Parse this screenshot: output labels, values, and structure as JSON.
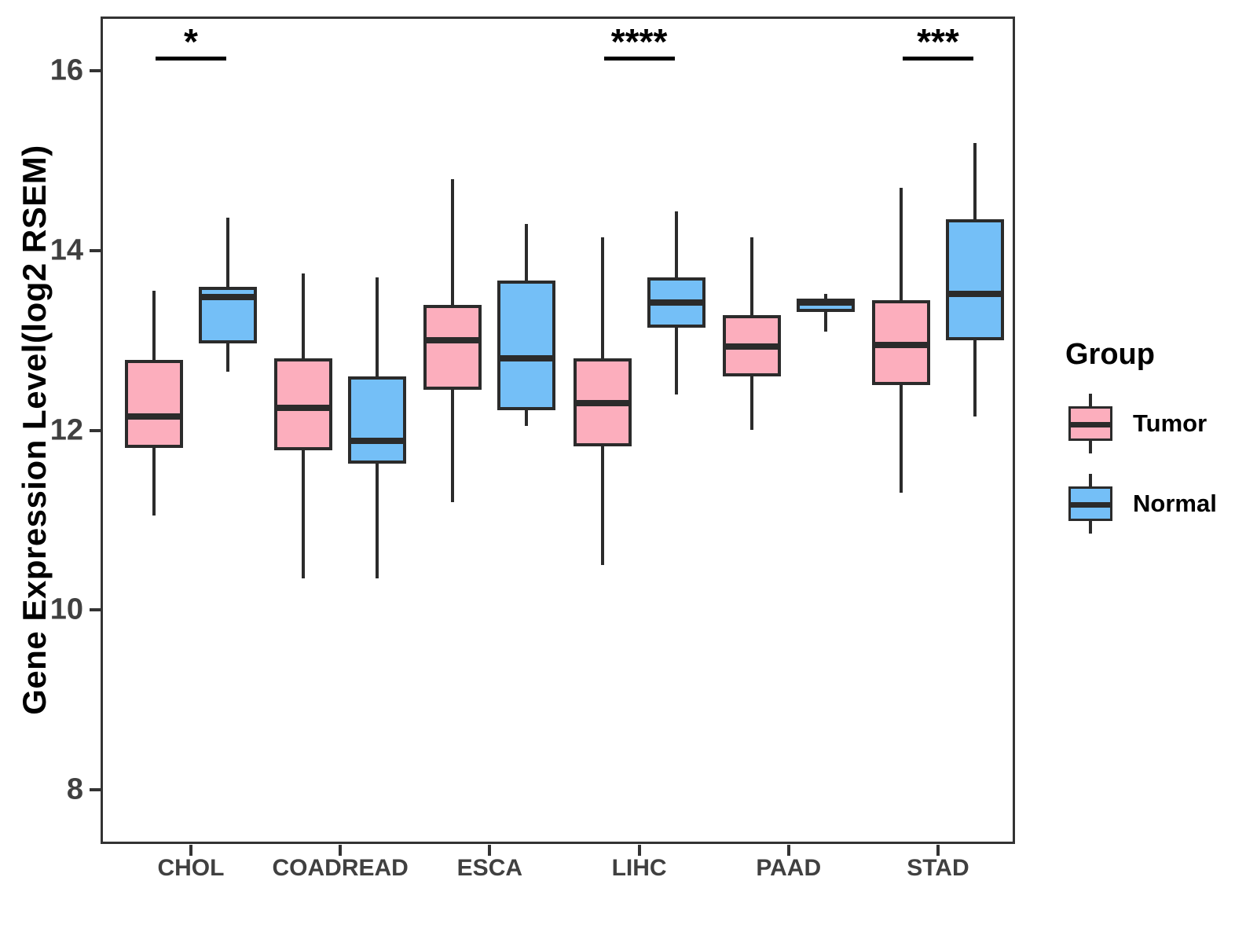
{
  "chart_data": {
    "type": "boxplot",
    "title": "",
    "xlabel": "",
    "ylabel": "Gene Expression Level(log2 RSEM)",
    "categories": [
      "CHOL",
      "COADREAD",
      "ESCA",
      "LIHC",
      "PAAD",
      "STAD"
    ],
    "y_ticks": [
      16,
      14,
      12,
      10,
      8
    ],
    "ylim": [
      7.41,
      16.59
    ],
    "grid": false,
    "legend": {
      "title": "Group",
      "position": "right"
    },
    "groups": [
      "Tumor",
      "Normal"
    ],
    "series": [
      {
        "name": "Tumor",
        "color": "#FCAEBD",
        "boxes": [
          {
            "category": "CHOL",
            "min": 11.05,
            "q1": 11.8,
            "median": 12.15,
            "q3": 12.78,
            "max": 13.55
          },
          {
            "category": "COADREAD",
            "min": 10.35,
            "q1": 11.78,
            "median": 12.25,
            "q3": 12.8,
            "max": 13.75
          },
          {
            "category": "ESCA",
            "min": 11.2,
            "q1": 12.45,
            "median": 13.0,
            "q3": 13.4,
            "max": 14.8
          },
          {
            "category": "LIHC",
            "min": 10.5,
            "q1": 11.82,
            "median": 12.3,
            "q3": 12.8,
            "max": 14.15
          },
          {
            "category": "PAAD",
            "min": 12.0,
            "q1": 12.6,
            "median": 12.93,
            "q3": 13.28,
            "max": 14.15
          },
          {
            "category": "STAD",
            "min": 11.3,
            "q1": 12.5,
            "median": 12.95,
            "q3": 13.45,
            "max": 14.7
          }
        ]
      },
      {
        "name": "Normal",
        "color": "#74BFF7",
        "boxes": [
          {
            "category": "CHOL",
            "min": 12.65,
            "q1": 12.97,
            "median": 13.48,
            "q3": 13.6,
            "max": 14.37
          },
          {
            "category": "COADREAD",
            "min": 10.35,
            "q1": 11.63,
            "median": 11.88,
            "q3": 12.6,
            "max": 13.7
          },
          {
            "category": "ESCA",
            "min": 12.05,
            "q1": 12.22,
            "median": 12.8,
            "q3": 13.67,
            "max": 14.3
          },
          {
            "category": "LIHC",
            "min": 12.4,
            "q1": 13.14,
            "median": 13.42,
            "q3": 13.7,
            "max": 14.44
          },
          {
            "category": "PAAD",
            "min": 13.1,
            "q1": 13.32,
            "median": 13.42,
            "q3": 13.47,
            "max": 13.52
          },
          {
            "category": "STAD",
            "min": 12.15,
            "q1": 13.0,
            "median": 13.52,
            "q3": 14.35,
            "max": 15.2
          }
        ]
      }
    ],
    "significance": [
      {
        "category": "CHOL",
        "label": "*"
      },
      {
        "category": "LIHC",
        "label": "****"
      },
      {
        "category": "STAD",
        "label": "***"
      }
    ],
    "style": {
      "box_border": "#2B2B2B",
      "axis_color": "#333333",
      "tick_label_color": "#404040",
      "annotation_color": "#000000"
    }
  }
}
